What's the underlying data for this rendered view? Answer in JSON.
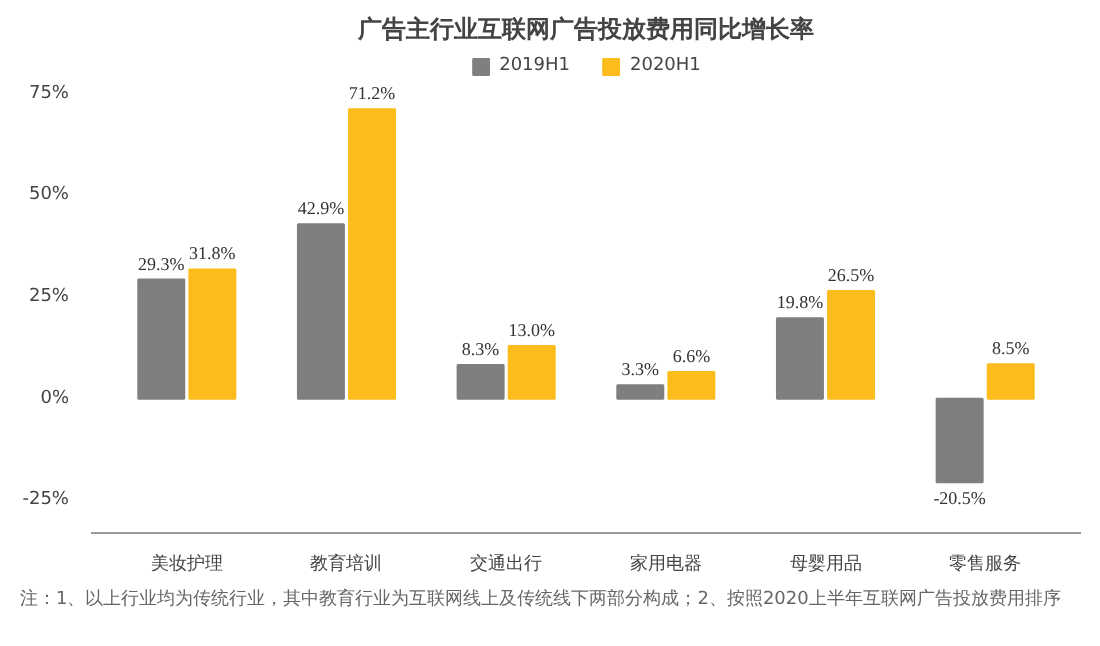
{
  "chart_data": {
    "type": "bar",
    "title": "广告主行业互联网广告投放费用同比增长率",
    "categories": [
      "美妆护理",
      "教育培训",
      "交通出行",
      "家用电器",
      "母婴用品",
      "零售服务"
    ],
    "series": [
      {
        "name": "2019H1",
        "color": "#7f7f7f",
        "values": [
          29.3,
          42.9,
          8.3,
          3.3,
          19.8,
          -20.5
        ],
        "value_labels": [
          "29.3%",
          "42.9%",
          "8.3%",
          "3.3%",
          "19.8%",
          "-20.5%"
        ]
      },
      {
        "name": "2020H1",
        "color": "#fbbc1c",
        "values": [
          31.8,
          71.2,
          13.0,
          6.6,
          26.5,
          8.5
        ],
        "value_labels": [
          "31.8%",
          "71.2%",
          "13.0%",
          "6.6%",
          "26.5%",
          "8.5%"
        ]
      }
    ],
    "ylim": [
      -33,
      85
    ],
    "yticks": [
      {
        "value": -25,
        "label": "-25%"
      },
      {
        "value": 0,
        "label": "0%"
      },
      {
        "value": 25,
        "label": "25%"
      },
      {
        "value": 50,
        "label": "50%"
      },
      {
        "value": 75,
        "label": "75%"
      }
    ],
    "grid": false,
    "legend": "top",
    "annotations": [
      "注：1、以上行业均为传统行业，其中教育行业为互联网线上及传统线下两部分构成；2、按照2020上半年互联网广告投放费用排序"
    ]
  }
}
